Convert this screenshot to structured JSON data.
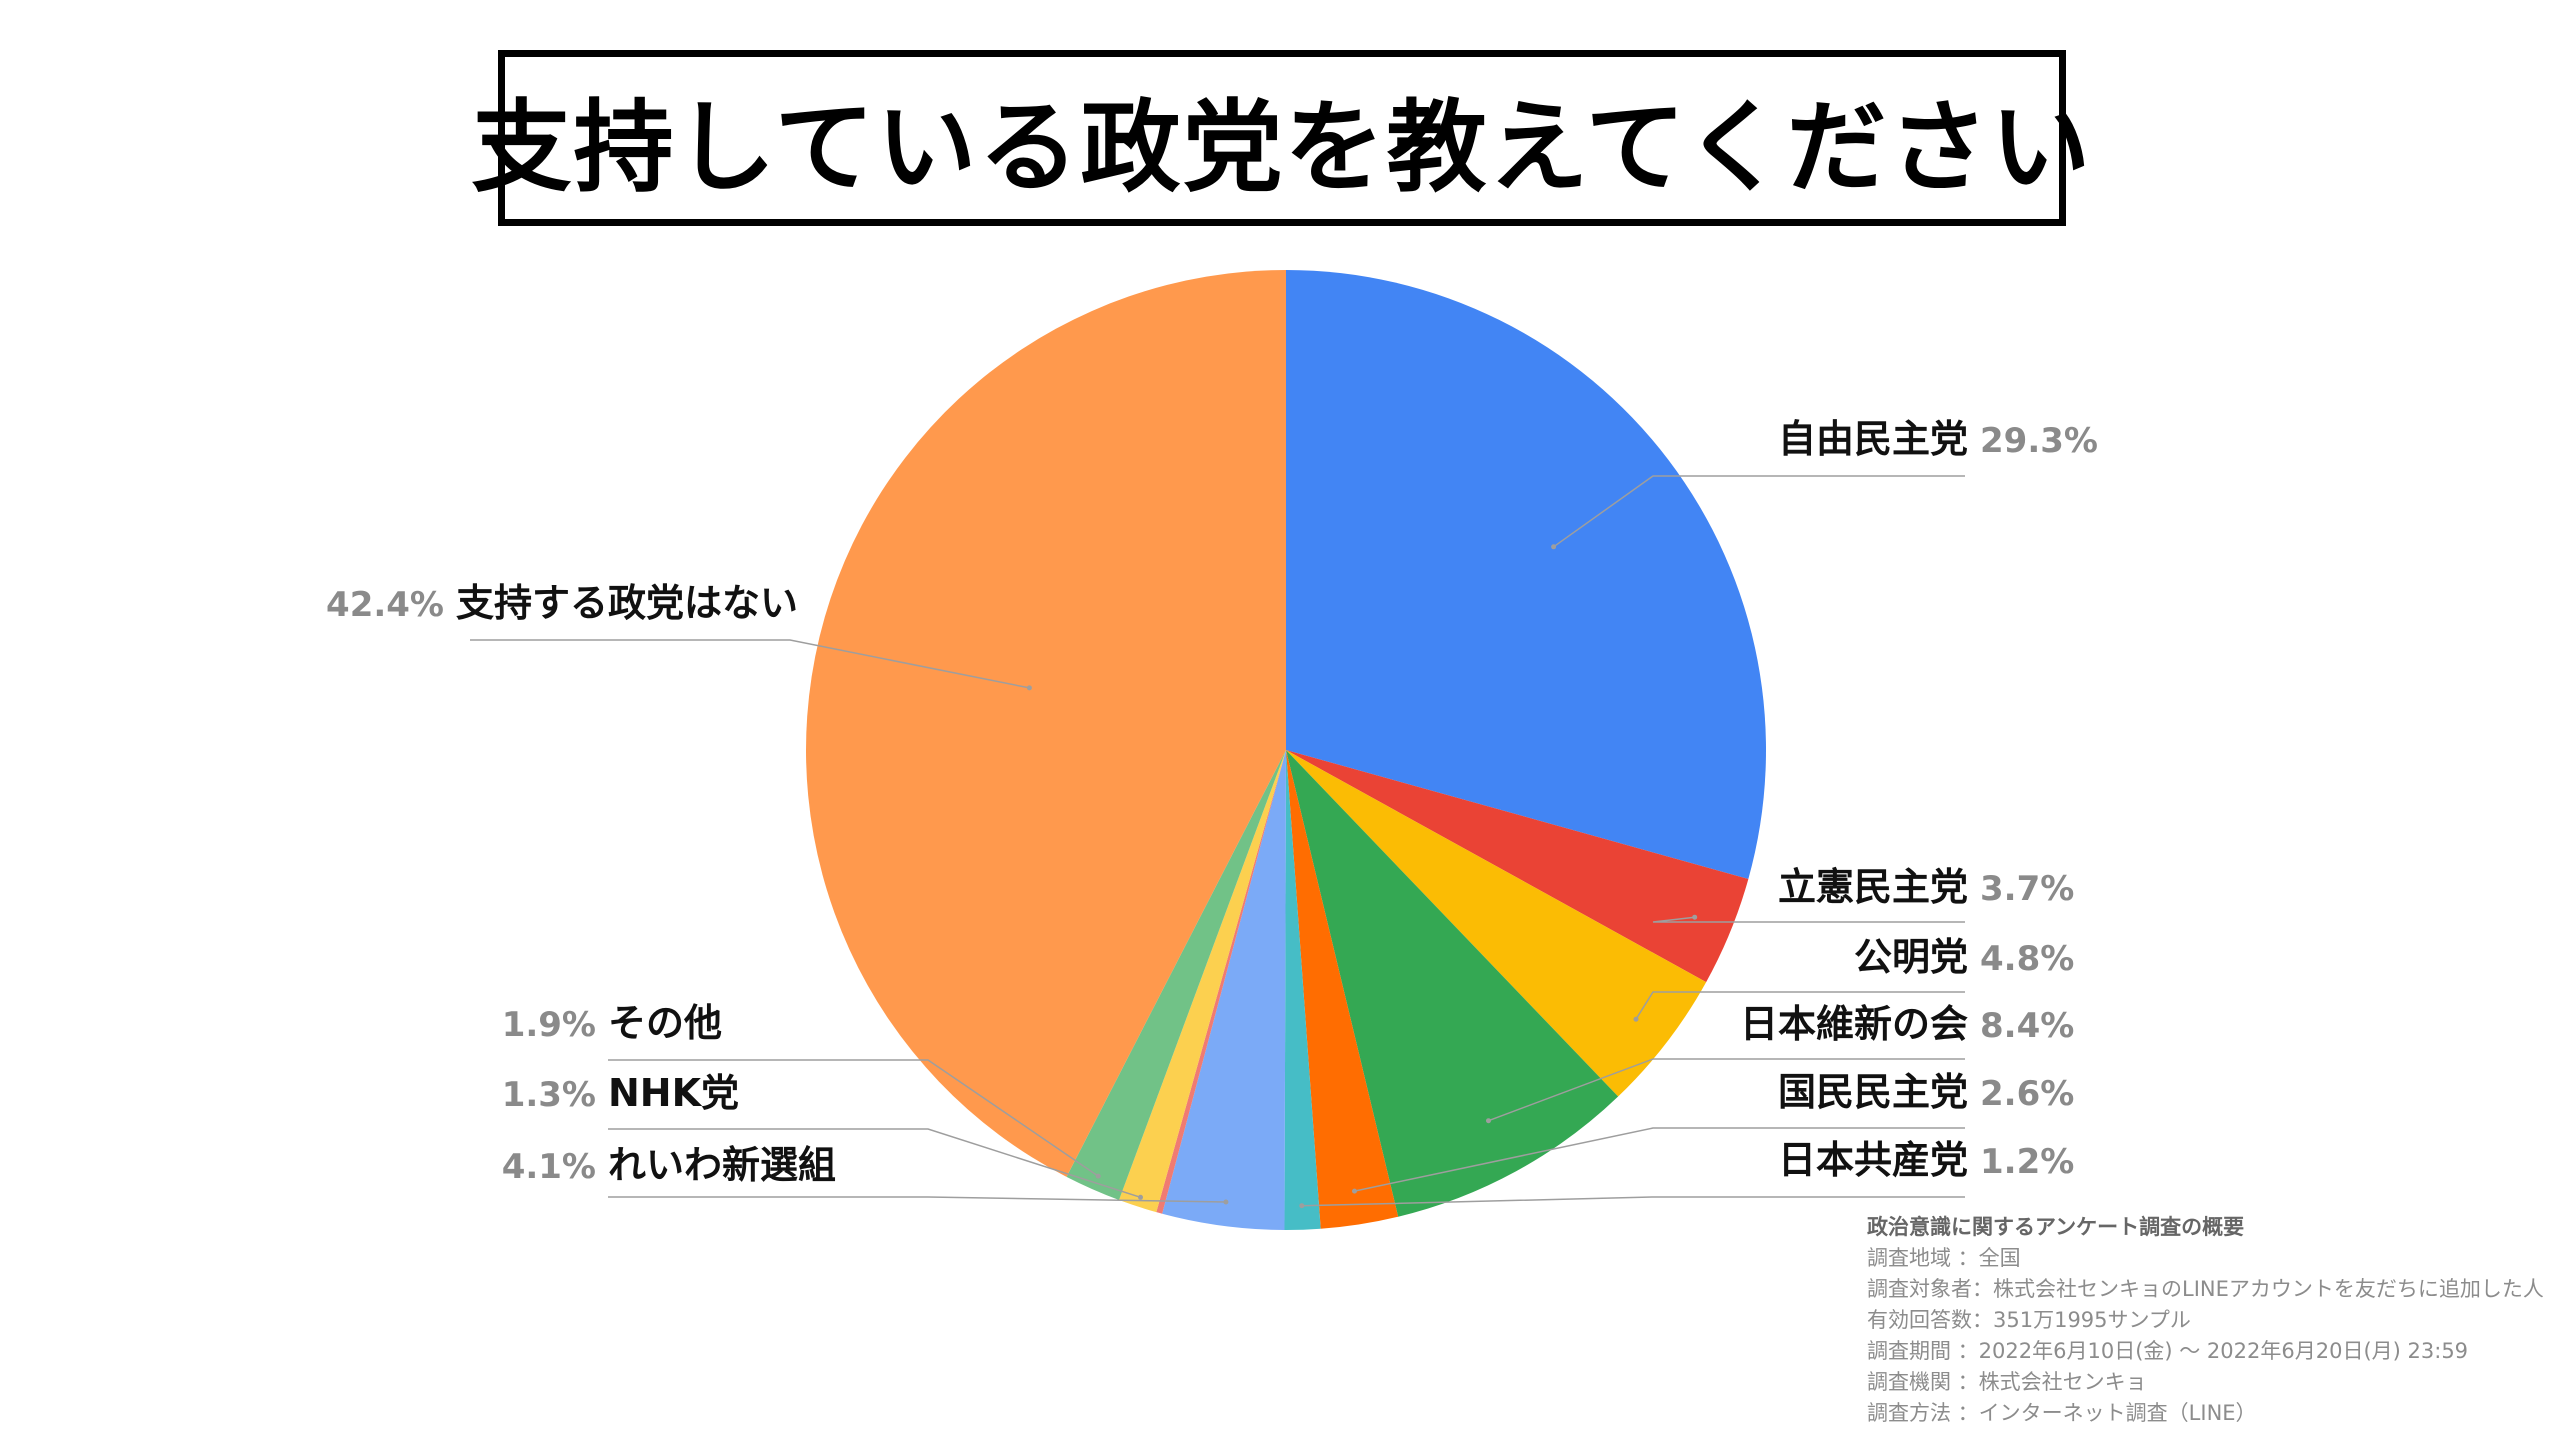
{
  "chart_data": {
    "type": "pie",
    "title": "支持している政党を教えてください",
    "slices": [
      {
        "name": "自由民主党",
        "value": 29.3,
        "label": "29.3%",
        "color": "#4285F4"
      },
      {
        "name": "立憲民主党",
        "value": 3.7,
        "label": "3.7%",
        "color": "#EA4335"
      },
      {
        "name": "公明党",
        "value": 4.8,
        "label": "4.8%",
        "color": "#FBBC04"
      },
      {
        "name": "日本維新の会",
        "value": 8.4,
        "label": "8.4%",
        "color": "#34A853"
      },
      {
        "name": "国民民主党",
        "value": 2.6,
        "label": "2.6%",
        "color": "#FF6D01"
      },
      {
        "name": "日本共産党",
        "value": 1.2,
        "label": "1.2%",
        "color": "#46BDC6"
      },
      {
        "name": "れいわ新選組",
        "value": 4.1,
        "label": "4.1%",
        "color": "#7BAAF7"
      },
      {
        "name": "",
        "value": 0.2,
        "label": "",
        "color": "#F07B72"
      },
      {
        "name": "NHK党",
        "value": 1.3,
        "label": "1.3%",
        "color": "#FCD04F"
      },
      {
        "name": "その他",
        "value": 1.9,
        "label": "1.9%",
        "color": "#71C287"
      },
      {
        "name": "支持する政党はない",
        "value": 42.4,
        "label": "42.4%",
        "color": "#FF994D"
      }
    ],
    "start_angle": "12 o'clock",
    "direction": "clockwise",
    "legend": "none (callout labels)"
  },
  "notes": {
    "heading": "政治意識に関するアンケート調査の概要",
    "lines": [
      "調査地域 ：全国",
      "調査対象者：株式会社センキョのLINEアカウントを友だちに追加した人",
      "有効回答数：351万1995サンプル",
      "調査期間 ：2022年6月10日(金) 〜 2022年6月20日(月) 23:59",
      "調査機関 ：株式会社センキョ",
      "調査方法 ：インターネット調査（LINE）"
    ]
  }
}
